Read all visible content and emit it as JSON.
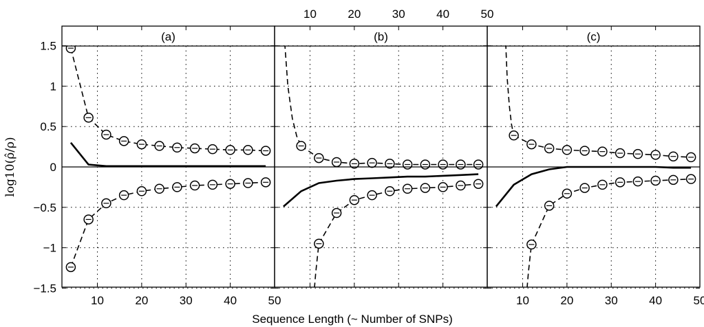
{
  "chart_data": {
    "type": "line",
    "xlabel": "Sequence Length (~ Number of SNPs)",
    "ylabel": "log10(ρ̂/ρ)",
    "ylim": [
      -1.5,
      1.75
    ],
    "xlim": [
      2,
      50
    ],
    "yticks": [
      "1.5",
      "1",
      "0.5",
      "0",
      "-0.5",
      "-1",
      "-1.5"
    ],
    "ytick_values": [
      1.5,
      1,
      0.5,
      0,
      -0.5,
      -1,
      -1.5
    ],
    "bottom_xticks": {
      "a": [
        "10",
        "20",
        "30",
        "40",
        "50"
      ],
      "c": [
        "10",
        "20",
        "30",
        "40",
        "50"
      ]
    },
    "top_xticks": {
      "b": [
        "10",
        "20",
        "30",
        "40",
        "50"
      ]
    },
    "xtick_values": [
      10,
      20,
      30,
      40,
      50
    ],
    "grid": "dotted",
    "series_styles": {
      "median": "solid",
      "upper": "dashed-circles",
      "lower": "dashed-circles"
    },
    "panels": [
      {
        "label": "(a)",
        "median": {
          "x": [
            4,
            8,
            12,
            16,
            20,
            24,
            28,
            32,
            36,
            40,
            44,
            48
          ],
          "y": [
            0.3,
            0.03,
            0.01,
            0.01,
            0.01,
            0.01,
            0.01,
            0.01,
            0.01,
            0.01,
            0.01,
            0.01
          ]
        },
        "upper": {
          "x": [
            4,
            8,
            12,
            16,
            20,
            24,
            28,
            32,
            36,
            40,
            44,
            48
          ],
          "y": [
            1.47,
            0.61,
            0.4,
            0.32,
            0.28,
            0.26,
            0.24,
            0.23,
            0.22,
            0.21,
            0.21,
            0.2
          ]
        },
        "lower": {
          "x": [
            4,
            8,
            12,
            16,
            20,
            24,
            28,
            32,
            36,
            40,
            44,
            48
          ],
          "y": [
            -1.24,
            -0.65,
            -0.45,
            -0.35,
            -0.3,
            -0.27,
            -0.25,
            -0.23,
            -0.22,
            -0.21,
            -0.2,
            -0.19
          ]
        }
      },
      {
        "label": "(b)",
        "median": {
          "x": [
            4,
            8,
            12,
            16,
            20,
            24,
            28,
            32,
            36,
            40,
            44,
            48
          ],
          "y": [
            -0.49,
            -0.3,
            -0.2,
            -0.17,
            -0.15,
            -0.14,
            -0.13,
            -0.12,
            -0.12,
            -0.11,
            -0.1,
            -0.09
          ]
        },
        "upper": {
          "x": [
            8,
            12,
            16,
            20,
            24,
            28,
            32,
            36,
            40,
            44,
            48
          ],
          "y": [
            0.26,
            0.11,
            0.06,
            0.04,
            0.05,
            0.04,
            0.03,
            0.03,
            0.03,
            0.03,
            0.03
          ]
        },
        "upper_tail": {
          "x": [
            4,
            5,
            6,
            7,
            8
          ],
          "y": [
            1.75,
            1.0,
            0.6,
            0.38,
            0.26
          ]
        },
        "lower": {
          "x": [
            12,
            16,
            20,
            24,
            28,
            32,
            36,
            40,
            44,
            48
          ],
          "y": [
            -0.95,
            -0.57,
            -0.41,
            -0.35,
            -0.3,
            -0.27,
            -0.26,
            -0.25,
            -0.23,
            -0.21
          ]
        },
        "lower_tail": {
          "x": [
            11,
            11.3,
            11.7,
            12
          ],
          "y": [
            -1.5,
            -1.3,
            -1.1,
            -0.95
          ]
        }
      },
      {
        "label": "(c)",
        "median": {
          "x": [
            4,
            8,
            12,
            16,
            20,
            24,
            28,
            32,
            36,
            40,
            44,
            48
          ],
          "y": [
            -0.49,
            -0.22,
            -0.09,
            -0.03,
            0.0,
            0.0,
            0.0,
            0.0,
            0.0,
            0.0,
            -0.01,
            -0.01
          ]
        },
        "upper": {
          "x": [
            8,
            12,
            16,
            20,
            24,
            28,
            32,
            36,
            40,
            44,
            48
          ],
          "y": [
            0.39,
            0.28,
            0.23,
            0.21,
            0.2,
            0.19,
            0.17,
            0.16,
            0.15,
            0.13,
            0.12
          ]
        },
        "upper_tail": {
          "x": [
            6,
            6.5,
            7,
            7.5,
            8
          ],
          "y": [
            1.75,
            1.1,
            0.75,
            0.52,
            0.39
          ]
        },
        "lower": {
          "x": [
            12,
            16,
            20,
            24,
            28,
            32,
            36,
            40,
            44,
            48
          ],
          "y": [
            -0.96,
            -0.48,
            -0.33,
            -0.26,
            -0.22,
            -0.19,
            -0.18,
            -0.17,
            -0.16,
            -0.15
          ]
        },
        "lower_tail": {
          "x": [
            11,
            11.3,
            11.7,
            12
          ],
          "y": [
            -1.5,
            -1.3,
            -1.1,
            -0.96
          ]
        }
      }
    ]
  }
}
